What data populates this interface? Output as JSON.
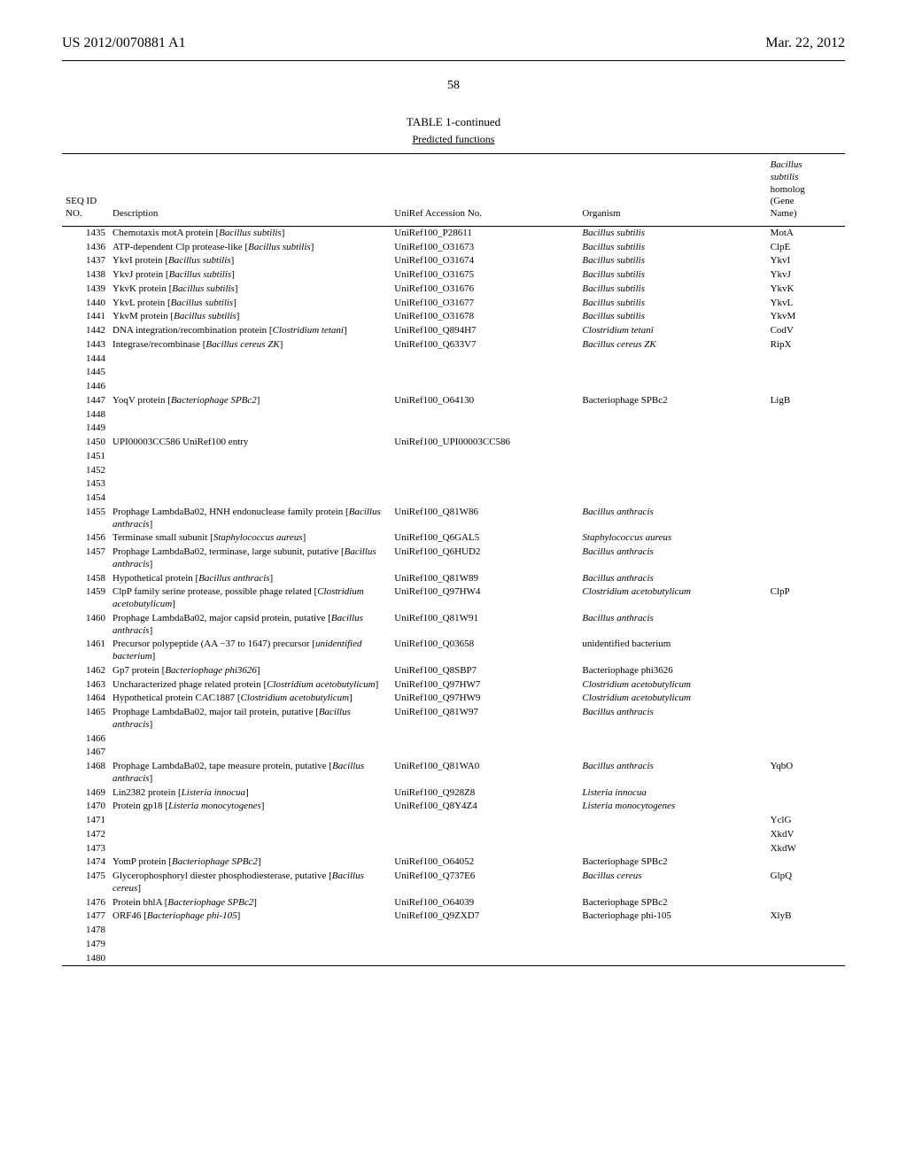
{
  "header": {
    "left": "US 2012/0070881 A1",
    "right": "Mar. 22, 2012"
  },
  "page_number": "58",
  "table": {
    "title": "TABLE 1-continued",
    "subtitle": "Predicted functions",
    "columns": {
      "seq": "SEQ ID\nNO.",
      "desc": "Description",
      "uni": "UniRef Accession No.",
      "org": "Organism",
      "gene_top": "Bacillus\nsubtilis",
      "gene_bottom": "homolog\n(Gene\nName)"
    },
    "rows": [
      {
        "seq": "1435",
        "desc": "Chemotaxis motA protein [Bacillus subtilis]",
        "uni": "UniRef100_P28611",
        "org": "Bacillus subtilis",
        "gene": "MotA"
      },
      {
        "seq": "1436",
        "desc": "ATP-dependent Clp protease-like [Bacillus subtilis]",
        "uni": "UniRef100_O31673",
        "org": "Bacillus subtilis",
        "gene": "ClpE"
      },
      {
        "seq": "1437",
        "desc": "YkvI protein [Bacillus subtilis]",
        "uni": "UniRef100_O31674",
        "org": "Bacillus subtilis",
        "gene": "YkvI"
      },
      {
        "seq": "1438",
        "desc": "YkvJ protein [Bacillus subtilis]",
        "uni": "UniRef100_O31675",
        "org": "Bacillus subtilis",
        "gene": "YkvJ"
      },
      {
        "seq": "1439",
        "desc": "YkvK protein [Bacillus subtilis]",
        "uni": "UniRef100_O31676",
        "org": "Bacillus subtilis",
        "gene": "YkvK"
      },
      {
        "seq": "1440",
        "desc": "YkvL protein [Bacillus subtilis]",
        "uni": "UniRef100_O31677",
        "org": "Bacillus subtilis",
        "gene": "YkvL"
      },
      {
        "seq": "1441",
        "desc": "YkvM protein [Bacillus subtilis]",
        "uni": "UniRef100_O31678",
        "org": "Bacillus subtilis",
        "gene": "YkvM"
      },
      {
        "seq": "1442",
        "desc": "DNA integration/recombination protein [Clostridium tetani]",
        "uni": "UniRef100_Q894H7",
        "org": "Clostridium tetani",
        "gene": "CodV"
      },
      {
        "seq": "1443",
        "desc": "Integrase/recombinase [Bacillus cereus ZK]",
        "uni": "UniRef100_Q633V7",
        "org": "Bacillus cereus ZK",
        "gene": "RipX"
      },
      {
        "seq": "1444",
        "desc": "",
        "uni": "",
        "org": "",
        "gene": ""
      },
      {
        "seq": "1445",
        "desc": "",
        "uni": "",
        "org": "",
        "gene": ""
      },
      {
        "seq": "1446",
        "desc": "",
        "uni": "",
        "org": "",
        "gene": ""
      },
      {
        "seq": "1447",
        "desc": "YoqV protein [Bacteriophage SPBc2]",
        "uni": "UniRef100_O64130",
        "org": "Bacteriophage SPBc2",
        "gene": "LigB"
      },
      {
        "seq": "1448",
        "desc": "",
        "uni": "",
        "org": "",
        "gene": ""
      },
      {
        "seq": "1449",
        "desc": "",
        "uni": "",
        "org": "",
        "gene": ""
      },
      {
        "seq": "1450",
        "desc": "UPI00003CC586 UniRef100 entry",
        "uni": "UniRef100_UPI00003CC586",
        "org": "",
        "gene": ""
      },
      {
        "seq": "1451",
        "desc": "",
        "uni": "",
        "org": "",
        "gene": ""
      },
      {
        "seq": "1452",
        "desc": "",
        "uni": "",
        "org": "",
        "gene": ""
      },
      {
        "seq": "1453",
        "desc": "",
        "uni": "",
        "org": "",
        "gene": ""
      },
      {
        "seq": "1454",
        "desc": "",
        "uni": "",
        "org": "",
        "gene": ""
      },
      {
        "seq": "1455",
        "desc": "Prophage LambdaBa02, HNH endonuclease family protein [Bacillus anthracis]",
        "uni": "UniRef100_Q81W86",
        "org": "Bacillus anthracis",
        "gene": ""
      },
      {
        "seq": "1456",
        "desc": "Terminase small subunit [Staphylococcus aureus]",
        "uni": "UniRef100_Q6GAL5",
        "org": "Staphylococcus aureus",
        "gene": ""
      },
      {
        "seq": "1457",
        "desc": "Prophage LambdaBa02, terminase, large subunit, putative [Bacillus anthracis]",
        "uni": "UniRef100_Q6HUD2",
        "org": "Bacillus anthracis",
        "gene": ""
      },
      {
        "seq": "1458",
        "desc": "Hypothetical protein [Bacillus anthracis]",
        "uni": "UniRef100_Q81W89",
        "org": "Bacillus anthracis",
        "gene": ""
      },
      {
        "seq": "1459",
        "desc": "ClpP family serine protease, possible phage related [Clostridium acetobutylicum]",
        "uni": "UniRef100_Q97HW4",
        "org": "Clostridium acetobutylicum",
        "gene": "ClpP"
      },
      {
        "seq": "1460",
        "desc": "Prophage LambdaBa02, major capsid protein, putative [Bacillus anthracis]",
        "uni": "UniRef100_Q81W91",
        "org": "Bacillus anthracis",
        "gene": ""
      },
      {
        "seq": "1461",
        "desc": "Precursor polypeptide (AA −37 to 1647) precursor [unidentified bacterium]",
        "uni": "UniRef100_Q03658",
        "org": "unidentified bacterium",
        "gene": ""
      },
      {
        "seq": "1462",
        "desc": "Gp7 protein [Bacteriophage phi3626]",
        "uni": "UniRef100_Q8SBP7",
        "org": "Bacteriophage phi3626",
        "gene": ""
      },
      {
        "seq": "1463",
        "desc": "Uncharacterized phage related protein [Clostridium acetobutylicum]",
        "uni": "UniRef100_Q97HW7",
        "org": "Clostridium acetobutylicum",
        "gene": ""
      },
      {
        "seq": "1464",
        "desc": "Hypothetical protein CAC1887 [Clostridium acetobutylicum]",
        "uni": "UniRef100_Q97HW9",
        "org": "Clostridium acetobutylicum",
        "gene": ""
      },
      {
        "seq": "1465",
        "desc": "Prophage LambdaBa02, major tail protein, putative [Bacillus anthracis]",
        "uni": "UniRef100_Q81W97",
        "org": "Bacillus anthracis",
        "gene": ""
      },
      {
        "seq": "1466",
        "desc": "",
        "uni": "",
        "org": "",
        "gene": ""
      },
      {
        "seq": "1467",
        "desc": "",
        "uni": "",
        "org": "",
        "gene": ""
      },
      {
        "seq": "1468",
        "desc": "Prophage LambdaBa02, tape measure protein, putative [Bacillus anthracis]",
        "uni": "UniRef100_Q81WA0",
        "org": "Bacillus anthracis",
        "gene": "YqbO"
      },
      {
        "seq": "1469",
        "desc": "Lin2382 protein [Listeria innocua]",
        "uni": "UniRef100_Q928Z8",
        "org": "Listeria innocua",
        "gene": ""
      },
      {
        "seq": "1470",
        "desc": "Protein gp18 [Listeria monocytogenes]",
        "uni": "UniRef100_Q8Y4Z4",
        "org": "Listeria monocytogenes",
        "gene": ""
      },
      {
        "seq": "1471",
        "desc": "",
        "uni": "",
        "org": "",
        "gene": "YclG"
      },
      {
        "seq": "1472",
        "desc": "",
        "uni": "",
        "org": "",
        "gene": "XkdV"
      },
      {
        "seq": "1473",
        "desc": "",
        "uni": "",
        "org": "",
        "gene": "XkdW"
      },
      {
        "seq": "1474",
        "desc": "YomP protein [Bacteriophage SPBc2]",
        "uni": "UniRef100_O64052",
        "org": "Bacteriophage SPBc2",
        "gene": ""
      },
      {
        "seq": "1475",
        "desc": "Glycerophosphoryl diester phosphodiesterase, putative [Bacillus cereus]",
        "uni": "UniRef100_Q737E6",
        "org": "Bacillus cereus",
        "gene": "GlpQ"
      },
      {
        "seq": "1476",
        "desc": "Protein bhlA [Bacteriophage SPBc2]",
        "uni": "UniRef100_O64039",
        "org": "Bacteriophage SPBc2",
        "gene": ""
      },
      {
        "seq": "1477",
        "desc": "ORF46 [Bacteriophage phi-105]",
        "uni": "UniRef100_Q9ZXD7",
        "org": "Bacteriophage phi-105",
        "gene": "XlyB"
      },
      {
        "seq": "1478",
        "desc": "",
        "uni": "",
        "org": "",
        "gene": ""
      },
      {
        "seq": "1479",
        "desc": "",
        "uni": "",
        "org": "",
        "gene": ""
      },
      {
        "seq": "1480",
        "desc": "",
        "uni": "",
        "org": "",
        "gene": ""
      }
    ]
  }
}
